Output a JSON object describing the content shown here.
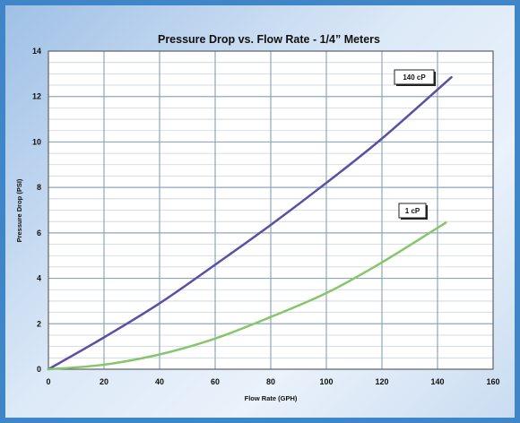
{
  "chart_data": {
    "type": "line",
    "title": "Pressure Drop vs. Flow Rate - 1/4” Meters",
    "xlabel": "Flow Rate (GPH)",
    "ylabel": "Pressure Drop (PSI)",
    "xlim": [
      0,
      160
    ],
    "ylim": [
      0,
      14
    ],
    "xticks": [
      0,
      20,
      40,
      60,
      80,
      100,
      120,
      140,
      160
    ],
    "yticks": [
      0,
      2,
      4,
      6,
      8,
      10,
      12,
      14
    ],
    "grid": true,
    "series": [
      {
        "name": "140 cP",
        "color": "#5b4fa3",
        "x": [
          0,
          20,
          40,
          60,
          80,
          100,
          120,
          145
        ],
        "y": [
          0,
          1.4,
          2.9,
          4.6,
          6.35,
          8.2,
          10.15,
          12.85
        ]
      },
      {
        "name": "1 cP",
        "color": "#86c66a",
        "x": [
          0,
          20,
          40,
          60,
          80,
          100,
          120,
          143
        ],
        "y": [
          0,
          0.2,
          0.65,
          1.35,
          2.3,
          3.35,
          4.7,
          6.45
        ]
      }
    ]
  },
  "colors": {
    "frame": "#3e86c8",
    "plot_background": "#ffffff",
    "grid_major": "#8fa6bf",
    "grid_minor": "#c9d3de"
  }
}
